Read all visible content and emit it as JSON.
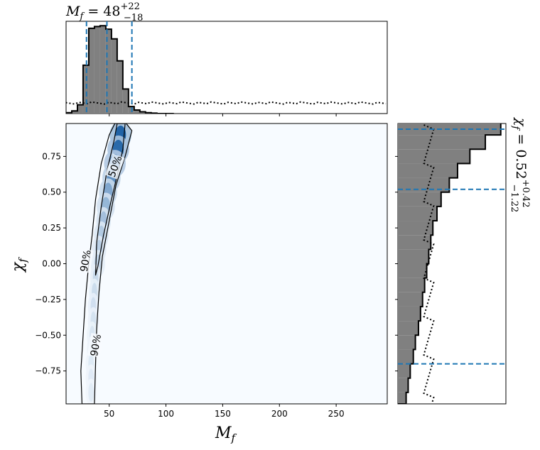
{
  "chart_data": [
    {
      "type": "heatmap",
      "panel": "joint",
      "xlabel_main": "M",
      "xlabel_sub": "f",
      "ylabel_main": "χ",
      "ylabel_sub": "f",
      "xlim": [
        12,
        295
      ],
      "ylim": [
        -0.98,
        0.98
      ],
      "x_ticks": [
        50,
        100,
        150,
        200,
        250
      ],
      "x_tick_labels": [
        "50",
        "100",
        "150",
        "200",
        "250"
      ],
      "y_ticks": [
        0.75,
        0.5,
        0.25,
        0.0,
        -0.25,
        -0.5,
        -0.75
      ],
      "y_tick_labels": [
        "0.75",
        "0.50",
        "0.25",
        "0.00",
        "−0.25",
        "−0.50",
        "−0.75"
      ],
      "colormap": "Blues",
      "density_ridge": [
        {
          "x": 60,
          "y": 0.9,
          "w": 6,
          "density": 1.0
        },
        {
          "x": 58,
          "y": 0.8,
          "w": 6,
          "density": 0.95
        },
        {
          "x": 55,
          "y": 0.7,
          "w": 6,
          "density": 0.85
        },
        {
          "x": 52,
          "y": 0.6,
          "w": 5,
          "density": 0.7
        },
        {
          "x": 49,
          "y": 0.5,
          "w": 5,
          "density": 0.55
        },
        {
          "x": 47,
          "y": 0.4,
          "w": 5,
          "density": 0.45
        },
        {
          "x": 45,
          "y": 0.3,
          "w": 4,
          "density": 0.38
        },
        {
          "x": 43,
          "y": 0.2,
          "w": 4,
          "density": 0.32
        },
        {
          "x": 41,
          "y": 0.1,
          "w": 4,
          "density": 0.28
        },
        {
          "x": 40,
          "y": 0.0,
          "w": 4,
          "density": 0.24
        },
        {
          "x": 38,
          "y": -0.1,
          "w": 3,
          "density": 0.22
        },
        {
          "x": 37,
          "y": -0.2,
          "w": 3,
          "density": 0.2
        },
        {
          "x": 36,
          "y": -0.3,
          "w": 3,
          "density": 0.18
        },
        {
          "x": 36,
          "y": -0.4,
          "w": 3,
          "density": 0.16
        },
        {
          "x": 35,
          "y": -0.5,
          "w": 3,
          "density": 0.14
        },
        {
          "x": 35,
          "y": -0.6,
          "w": 3,
          "density": 0.13
        },
        {
          "x": 34,
          "y": -0.7,
          "w": 3,
          "density": 0.12
        },
        {
          "x": 34,
          "y": -0.8,
          "w": 3,
          "density": 0.11
        },
        {
          "x": 34,
          "y": -0.9,
          "w": 3,
          "density": 0.1
        }
      ],
      "contours": [
        {
          "label": "90%",
          "points": [
            [
              26,
              -0.98
            ],
            [
              25,
              -0.75
            ],
            [
              27,
              -0.5
            ],
            [
              29,
              -0.25
            ],
            [
              32,
              0.0
            ],
            [
              35,
              0.2
            ],
            [
              38,
              0.45
            ],
            [
              43,
              0.7
            ],
            [
              50,
              0.9
            ],
            [
              55,
              0.98
            ],
            [
              65,
              0.98
            ],
            [
              70,
              0.93
            ],
            [
              64,
              0.75
            ],
            [
              56,
              0.55
            ],
            [
              50,
              0.3
            ],
            [
              44,
              0.05
            ],
            [
              41,
              -0.2
            ],
            [
              39,
              -0.45
            ],
            [
              38,
              -0.7
            ],
            [
              37,
              -0.98
            ]
          ]
        },
        {
          "label": "50%",
          "points": [
            [
              38,
              -0.08
            ],
            [
              39,
              0.15
            ],
            [
              43,
              0.4
            ],
            [
              48,
              0.65
            ],
            [
              54,
              0.85
            ],
            [
              57,
              0.98
            ],
            [
              64,
              0.98
            ],
            [
              62,
              0.8
            ],
            [
              58,
              0.65
            ],
            [
              52,
              0.45
            ],
            [
              45,
              0.2
            ],
            [
              40,
              -0.02
            ]
          ]
        }
      ],
      "contour_labels": [
        {
          "text": "50%",
          "x": 55,
          "y": 0.68,
          "rotate": -70
        },
        {
          "text": "90%",
          "x": 29,
          "y": 0.02,
          "rotate": -80
        },
        {
          "text": "90%",
          "x": 38,
          "y": -0.57,
          "rotate": -80
        }
      ]
    },
    {
      "type": "bar",
      "panel": "top-marginal",
      "title_prefix": "M",
      "title_sub": "f",
      "title_value": " = 48",
      "title_upper": "+22",
      "title_lower": "−18",
      "xlim": [
        12,
        295
      ],
      "ylim": [
        0,
        1.05
      ],
      "bin_edges": [
        12,
        17,
        22,
        27,
        32,
        37,
        42,
        47,
        52,
        57,
        62,
        67,
        72,
        77,
        82,
        87,
        92,
        97,
        102,
        107
      ],
      "values": [
        0.01,
        0.03,
        0.1,
        0.55,
        0.97,
        0.99,
        1.0,
        0.96,
        0.85,
        0.6,
        0.28,
        0.08,
        0.04,
        0.02,
        0.01,
        0.005,
        0.0,
        0.0,
        0.0
      ],
      "prior_level": 0.12,
      "quantile_lines": [
        30,
        48,
        70
      ],
      "fill_color": "#808080",
      "line_color": "#1f77b4"
    },
    {
      "type": "bar",
      "panel": "right-marginal",
      "orientation": "horizontal",
      "title_prefix": "χ",
      "title_sub": "f",
      "title_value": " = 0.52",
      "title_upper": "+0.42",
      "title_lower": "−1.22",
      "ylim": [
        -0.98,
        0.98
      ],
      "xlim": [
        0,
        1.05
      ],
      "bin_edges": [
        -0.98,
        -0.9,
        -0.8,
        -0.7,
        -0.6,
        -0.5,
        -0.4,
        -0.3,
        -0.2,
        -0.1,
        0.0,
        0.1,
        0.2,
        0.3,
        0.4,
        0.5,
        0.6,
        0.7,
        0.8,
        0.9,
        0.98
      ],
      "values": [
        0.08,
        0.1,
        0.12,
        0.15,
        0.17,
        0.2,
        0.22,
        0.24,
        0.26,
        0.28,
        0.3,
        0.32,
        0.34,
        0.38,
        0.42,
        0.5,
        0.58,
        0.7,
        0.85,
        1.0
      ],
      "prior_level": 0.3,
      "quantile_lines": [
        -0.7,
        0.52,
        0.94
      ],
      "fill_color": "#808080",
      "line_color": "#1f77b4"
    }
  ]
}
